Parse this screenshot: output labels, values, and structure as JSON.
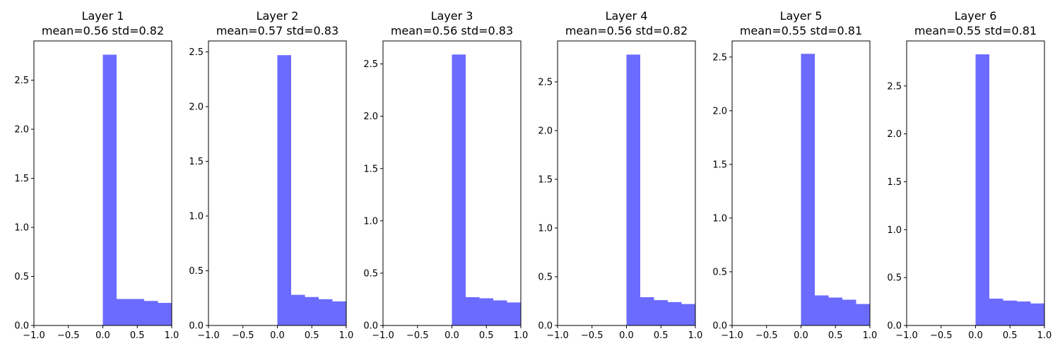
{
  "chart_data": [
    {
      "type": "bar",
      "title": "Layer 1",
      "subtitle": "mean=0.56 std=0.82",
      "xlim": [
        -1.0,
        1.0
      ],
      "ylim": [
        0,
        2.9
      ],
      "xticks": [
        "−1.0",
        "−0.5",
        "0.0",
        "0.5",
        "1.0"
      ],
      "yticks": [
        "0.0",
        "0.5",
        "1.0",
        "1.5",
        "2.0",
        "2.5"
      ],
      "bins": [
        [
          0.0,
          0.2
        ],
        [
          0.2,
          0.4
        ],
        [
          0.4,
          0.6
        ],
        [
          0.6,
          0.8
        ],
        [
          0.8,
          1.0
        ]
      ],
      "values": [
        2.76,
        0.27,
        0.27,
        0.25,
        0.23
      ]
    },
    {
      "type": "bar",
      "title": "Layer 2",
      "subtitle": "mean=0.57 std=0.83",
      "xlim": [
        -1.0,
        1.0
      ],
      "ylim": [
        0,
        2.6
      ],
      "xticks": [
        "−1.0",
        "−0.5",
        "0.0",
        "0.5",
        "1.0"
      ],
      "yticks": [
        "0.0",
        "0.5",
        "1.0",
        "1.5",
        "2.0",
        "2.5"
      ],
      "bins": [
        [
          0.0,
          0.2
        ],
        [
          0.2,
          0.4
        ],
        [
          0.4,
          0.6
        ],
        [
          0.6,
          0.8
        ],
        [
          0.8,
          1.0
        ]
      ],
      "values": [
        2.47,
        0.28,
        0.26,
        0.24,
        0.22
      ]
    },
    {
      "type": "bar",
      "title": "Layer 3",
      "subtitle": "mean=0.56 std=0.83",
      "xlim": [
        -1.0,
        1.0
      ],
      "ylim": [
        0,
        2.72
      ],
      "xticks": [
        "−1.0",
        "−0.5",
        "0.0",
        "0.5",
        "1.0"
      ],
      "yticks": [
        "0.0",
        "0.5",
        "1.0",
        "1.5",
        "2.0",
        "2.5"
      ],
      "bins": [
        [
          0.0,
          0.2
        ],
        [
          0.2,
          0.4
        ],
        [
          0.4,
          0.6
        ],
        [
          0.6,
          0.8
        ],
        [
          0.8,
          1.0
        ]
      ],
      "values": [
        2.59,
        0.27,
        0.26,
        0.24,
        0.22
      ]
    },
    {
      "type": "bar",
      "title": "Layer 4",
      "subtitle": "mean=0.56 std=0.82",
      "xlim": [
        -1.0,
        1.0
      ],
      "ylim": [
        0,
        2.92
      ],
      "xticks": [
        "−1.0",
        "−0.5",
        "0.0",
        "0.5",
        "1.0"
      ],
      "yticks": [
        "0.0",
        "0.5",
        "1.0",
        "1.5",
        "2.0",
        "2.5"
      ],
      "bins": [
        [
          0.0,
          0.2
        ],
        [
          0.2,
          0.4
        ],
        [
          0.4,
          0.6
        ],
        [
          0.6,
          0.8
        ],
        [
          0.8,
          1.0
        ]
      ],
      "values": [
        2.78,
        0.29,
        0.26,
        0.24,
        0.22
      ]
    },
    {
      "type": "bar",
      "title": "Layer 5",
      "subtitle": "mean=0.55 std=0.81",
      "xlim": [
        -1.0,
        1.0
      ],
      "ylim": [
        0,
        2.65
      ],
      "xticks": [
        "−1.0",
        "−0.5",
        "0.0",
        "0.5",
        "1.0"
      ],
      "yticks": [
        "0.0",
        "0.5",
        "1.0",
        "1.5",
        "2.0",
        "2.5"
      ],
      "bins": [
        [
          0.0,
          0.2
        ],
        [
          0.2,
          0.4
        ],
        [
          0.4,
          0.6
        ],
        [
          0.6,
          0.8
        ],
        [
          0.8,
          1.0
        ]
      ],
      "values": [
        2.53,
        0.28,
        0.26,
        0.24,
        0.2
      ]
    },
    {
      "type": "bar",
      "title": "Layer 6",
      "subtitle": "mean=0.55 std=0.81",
      "xlim": [
        -1.0,
        1.0
      ],
      "ylim": [
        0,
        2.97
      ],
      "xticks": [
        "−1.0",
        "−0.5",
        "0.0",
        "0.5",
        "1.0"
      ],
      "yticks": [
        "0.0",
        "0.5",
        "1.0",
        "1.5",
        "2.0",
        "2.5"
      ],
      "bins": [
        [
          0.0,
          0.2
        ],
        [
          0.2,
          0.4
        ],
        [
          0.4,
          0.6
        ],
        [
          0.6,
          0.8
        ],
        [
          0.8,
          1.0
        ]
      ],
      "values": [
        2.83,
        0.28,
        0.26,
        0.25,
        0.23
      ]
    }
  ],
  "colors": {
    "bar": "#6b6bff",
    "frame": "#000000",
    "text": "#000000"
  }
}
